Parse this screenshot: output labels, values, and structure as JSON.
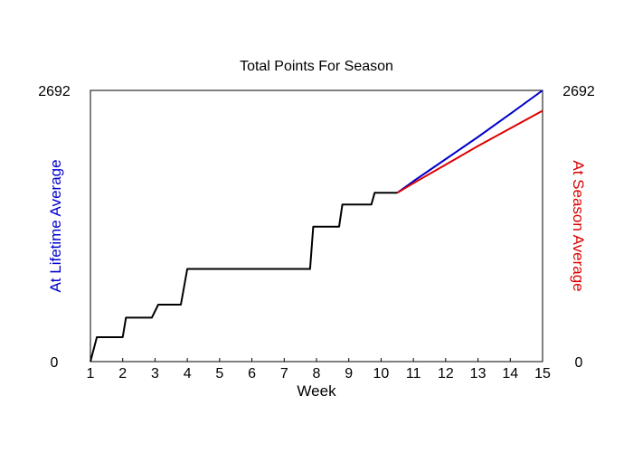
{
  "chart_data": {
    "type": "line",
    "title": "Total Points For Season",
    "xlabel": "Week",
    "ylabel_left": "At Lifetime Average",
    "ylabel_right": "At Season Average",
    "xlim": [
      1,
      15
    ],
    "ylim": [
      0,
      2692
    ],
    "x_ticks": [
      1,
      2,
      3,
      4,
      5,
      6,
      7,
      8,
      9,
      10,
      11,
      12,
      13,
      14,
      15
    ],
    "y_tick_labels_left": [
      "0",
      "2692"
    ],
    "y_tick_labels_right": [
      "0",
      "2692"
    ],
    "grid": false,
    "legend": "none",
    "colors": {
      "actual": "#000000",
      "lifetime": "#0000cc",
      "season": "#dd0000",
      "left_axis_label": "#0000cc",
      "right_axis_label": "#dd0000"
    },
    "series": [
      {
        "key": "actual",
        "x": [
          1,
          1.2,
          2.0,
          2.1,
          2.9,
          3.1,
          3.8,
          4.0,
          7.8,
          7.9,
          8.7,
          8.8,
          9.7,
          9.8,
          10.5
        ],
        "y": [
          0,
          242,
          242,
          436,
          436,
          565,
          565,
          920,
          920,
          1340,
          1340,
          1560,
          1560,
          1675,
          1675
        ]
      },
      {
        "key": "lifetime",
        "x": [
          10.5,
          11,
          12,
          13,
          14,
          15
        ],
        "y": [
          1675,
          1790,
          2010,
          2230,
          2460,
          2692
        ]
      },
      {
        "key": "season",
        "x": [
          10.5,
          11,
          12,
          13,
          14,
          15
        ],
        "y": [
          1675,
          1770,
          1955,
          2140,
          2315,
          2490
        ]
      }
    ]
  }
}
